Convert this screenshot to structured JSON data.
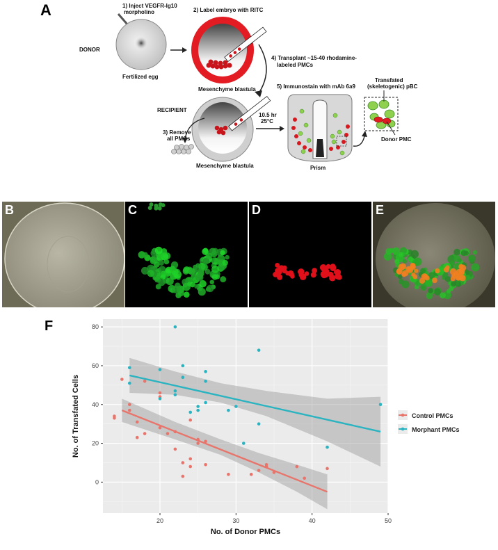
{
  "panels": {
    "a": "A",
    "b": "B",
    "c": "C",
    "d": "D",
    "e": "E",
    "f": "F"
  },
  "schematic": {
    "step1": [
      "1) Inject VEGFR-Ig10",
      "morpholino"
    ],
    "donor": "DONOR",
    "fertilized_egg": "Fertilized egg",
    "step2": "2) Label embryo with RITC",
    "mesenchyme_blastula_1": "Mesenchyme blastula",
    "step4": [
      "4) Transplant ~15-40 rhodamine-",
      "labeled PMCs"
    ],
    "recipient": "RECIPIENT",
    "step3": [
      "3) Remove",
      "all PMCs"
    ],
    "mesenchyme_blastula_2": "Mesenchyme blastula",
    "incubation": [
      "10.5 hr",
      "25°C"
    ],
    "step5": "5) Immunostain with mAb 6a9",
    "prism": "Prism",
    "transfated": [
      "Transfated",
      "(skeletogenic) pBC"
    ],
    "donor_pmc": "Donor PMC"
  },
  "chart_data": {
    "type": "scatter",
    "xlabel": "No. of Donor PMCs",
    "ylabel": "No. of Transfated Cells",
    "xlim": [
      12.5,
      50
    ],
    "ylim": [
      -16,
      84
    ],
    "x_ticks": [
      20,
      30,
      40,
      50
    ],
    "y_ticks": [
      0,
      20,
      40,
      60,
      80
    ],
    "grid": true,
    "legend_position": "right",
    "series": [
      {
        "name": "Control PMCs",
        "color": "#e8756b",
        "points": [
          [
            14,
            33
          ],
          [
            14,
            34
          ],
          [
            15,
            53
          ],
          [
            16,
            40
          ],
          [
            16,
            37
          ],
          [
            17,
            31
          ],
          [
            17,
            23
          ],
          [
            18,
            25
          ],
          [
            18,
            52
          ],
          [
            20,
            28
          ],
          [
            20,
            46
          ],
          [
            20,
            44
          ],
          [
            21,
            25
          ],
          [
            22,
            26
          ],
          [
            22,
            17
          ],
          [
            23,
            10
          ],
          [
            23,
            3
          ],
          [
            24,
            12
          ],
          [
            24,
            32
          ],
          [
            24,
            8
          ],
          [
            25,
            22
          ],
          [
            25,
            20
          ],
          [
            26,
            21
          ],
          [
            26,
            9
          ],
          [
            29,
            4
          ],
          [
            32,
            4
          ],
          [
            33,
            6
          ],
          [
            34,
            8
          ],
          [
            34,
            9
          ],
          [
            35,
            5
          ],
          [
            38,
            8
          ],
          [
            39,
            2
          ],
          [
            42,
            7
          ]
        ],
        "fit": [
          [
            15,
            37
          ],
          [
            42,
            -5
          ]
        ],
        "band_upper": [
          [
            15,
            43
          ],
          [
            22,
            31
          ],
          [
            28,
            22
          ],
          [
            33,
            15
          ],
          [
            38,
            9
          ],
          [
            42,
            4
          ]
        ],
        "band_lower": [
          [
            15,
            31
          ],
          [
            22,
            22
          ],
          [
            28,
            14
          ],
          [
            33,
            5
          ],
          [
            38,
            -5
          ],
          [
            42,
            -14
          ]
        ]
      },
      {
        "name": "Morphant PMCs",
        "color": "#2ab3c0",
        "points": [
          [
            16,
            59
          ],
          [
            16,
            51
          ],
          [
            20,
            58
          ],
          [
            20,
            43
          ],
          [
            22,
            80
          ],
          [
            22,
            47
          ],
          [
            22,
            45
          ],
          [
            23,
            60
          ],
          [
            23,
            54
          ],
          [
            24,
            36
          ],
          [
            25,
            39
          ],
          [
            25,
            37
          ],
          [
            26,
            57
          ],
          [
            26,
            52
          ],
          [
            26,
            41
          ],
          [
            29,
            37
          ],
          [
            30,
            39
          ],
          [
            31,
            20
          ],
          [
            33,
            68
          ],
          [
            33,
            30
          ],
          [
            42,
            18
          ],
          [
            49,
            40
          ]
        ],
        "fit": [
          [
            16,
            55
          ],
          [
            49,
            26
          ]
        ],
        "band_upper": [
          [
            16,
            64
          ],
          [
            22,
            57
          ],
          [
            28,
            51
          ],
          [
            34,
            47
          ],
          [
            42,
            43
          ],
          [
            49,
            44
          ]
        ],
        "band_lower": [
          [
            16,
            46
          ],
          [
            22,
            45
          ],
          [
            28,
            41
          ],
          [
            34,
            34
          ],
          [
            42,
            21
          ],
          [
            49,
            8
          ]
        ]
      }
    ]
  }
}
